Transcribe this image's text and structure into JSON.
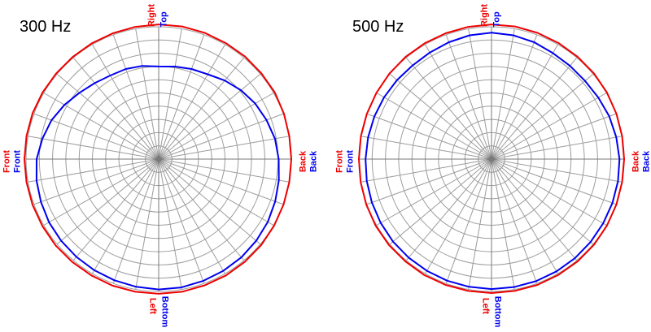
{
  "colors": {
    "background": "#ffffff",
    "red_series": "#ee0000",
    "blue_series": "#0000ee",
    "grid": "#9c9c9c",
    "axis": "#7a7a7a",
    "title": "#000000"
  },
  "chart_data": [
    {
      "type": "line",
      "polar": true,
      "title": "300 Hz",
      "grid": {
        "rings": 10,
        "spoke_step_deg": 10,
        "outer_r": 1.0
      },
      "angle_convention": "0 deg at right, counterclockwise, values are radius fraction of outer ring",
      "angle_step_deg": 10,
      "direction_labels": {
        "top": [
          {
            "text": "Right",
            "series": "red"
          },
          {
            "text": "Top",
            "series": "blue"
          }
        ],
        "bottom": [
          {
            "text": "Left",
            "series": "red"
          },
          {
            "text": "Bottom",
            "series": "blue"
          }
        ],
        "left": [
          {
            "text": "Front",
            "series": "red"
          },
          {
            "text": "Front",
            "series": "blue"
          }
        ],
        "right": [
          {
            "text": "Back",
            "series": "red"
          },
          {
            "text": "Back",
            "series": "blue"
          }
        ]
      },
      "series": [
        {
          "name": "red",
          "color": "#ee0000",
          "values": [
            1.0,
            1.0,
            1.005,
            1.01,
            1.01,
            1.012,
            1.012,
            1.015,
            1.018,
            1.018,
            1.015,
            1.012,
            1.01,
            1.008,
            1.008,
            1.01,
            1.012,
            1.012,
            1.012,
            1.012,
            1.012,
            1.012,
            1.015,
            1.015,
            1.015,
            1.018,
            1.018,
            1.018,
            1.018,
            1.015,
            1.015,
            1.012,
            1.01,
            1.005,
            1.002,
            1.0
          ]
        },
        {
          "name": "blue",
          "color": "#0000ee",
          "values": [
            0.905,
            0.89,
            0.865,
            0.84,
            0.81,
            0.775,
            0.74,
            0.725,
            0.71,
            0.7,
            0.715,
            0.725,
            0.73,
            0.75,
            0.78,
            0.82,
            0.86,
            0.89,
            0.92,
            0.935,
            0.945,
            0.955,
            0.96,
            0.965,
            0.97,
            0.975,
            0.98,
            0.985,
            0.985,
            0.98,
            0.975,
            0.97,
            0.96,
            0.95,
            0.935,
            0.92
          ]
        }
      ]
    },
    {
      "type": "line",
      "polar": true,
      "title": "500 Hz",
      "grid": {
        "rings": 10,
        "spoke_step_deg": 10,
        "outer_r": 1.0
      },
      "angle_convention": "0 deg at right, counterclockwise, values are radius fraction of outer ring",
      "angle_step_deg": 10,
      "direction_labels": {
        "top": [
          {
            "text": "Right",
            "series": "red"
          },
          {
            "text": "Top",
            "series": "blue"
          }
        ],
        "bottom": [
          {
            "text": "Left",
            "series": "red"
          },
          {
            "text": "Bottom",
            "series": "blue"
          }
        ],
        "left": [
          {
            "text": "Front",
            "series": "red"
          },
          {
            "text": "Front",
            "series": "blue"
          }
        ],
        "right": [
          {
            "text": "Back",
            "series": "red"
          },
          {
            "text": "Back",
            "series": "blue"
          }
        ]
      },
      "series": [
        {
          "name": "red",
          "color": "#ee0000",
          "values": [
            1.0,
            1.0,
            1.002,
            1.005,
            1.008,
            1.01,
            1.012,
            1.015,
            1.018,
            1.018,
            1.015,
            1.012,
            1.01,
            1.008,
            1.005,
            1.002,
            1.0,
            1.0,
            1.0,
            1.002,
            1.005,
            1.008,
            1.01,
            1.01,
            1.012,
            1.012,
            1.012,
            1.012,
            1.012,
            1.012,
            1.01,
            1.01,
            1.008,
            1.005,
            1.002,
            1.0
          ]
        },
        {
          "name": "blue",
          "color": "#0000ee",
          "values": [
            0.965,
            0.955,
            0.945,
            0.93,
            0.92,
            0.92,
            0.925,
            0.94,
            0.95,
            0.955,
            0.95,
            0.94,
            0.93,
            0.925,
            0.93,
            0.935,
            0.94,
            0.945,
            0.95,
            0.955,
            0.96,
            0.965,
            0.97,
            0.972,
            0.975,
            0.978,
            0.98,
            0.982,
            0.982,
            0.982,
            0.98,
            0.978,
            0.975,
            0.972,
            0.97,
            0.968
          ]
        }
      ]
    }
  ]
}
